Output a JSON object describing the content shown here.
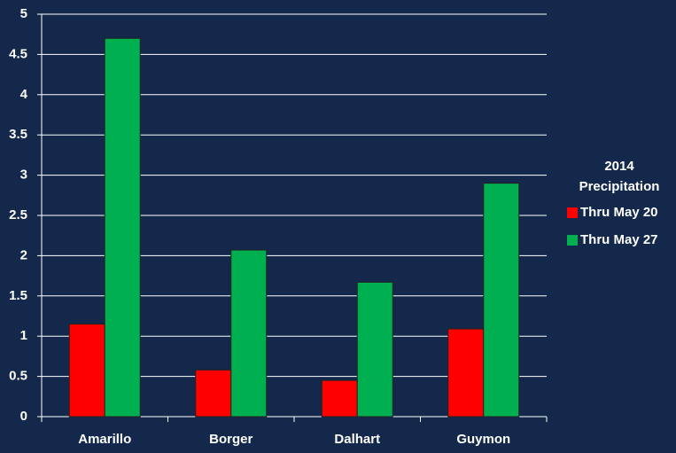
{
  "chart_data": {
    "type": "bar",
    "categories": [
      "Amarillo",
      "Borger",
      "Dalhart",
      "Guymon"
    ],
    "series": [
      {
        "name": "Thru May 20",
        "color": "#ff0000",
        "values": [
          1.15,
          0.58,
          0.45,
          1.09
        ]
      },
      {
        "name": "Thru May 27",
        "color": "#00b050",
        "values": [
          4.7,
          2.07,
          1.67,
          2.9
        ]
      }
    ],
    "legend_title": "2014 Precipitation",
    "legend": "right",
    "ylim": [
      0,
      5
    ],
    "yticks": [
      0,
      0.5,
      1,
      1.5,
      2,
      2.5,
      3,
      3.5,
      4,
      4.5,
      5
    ],
    "grid": true
  }
}
